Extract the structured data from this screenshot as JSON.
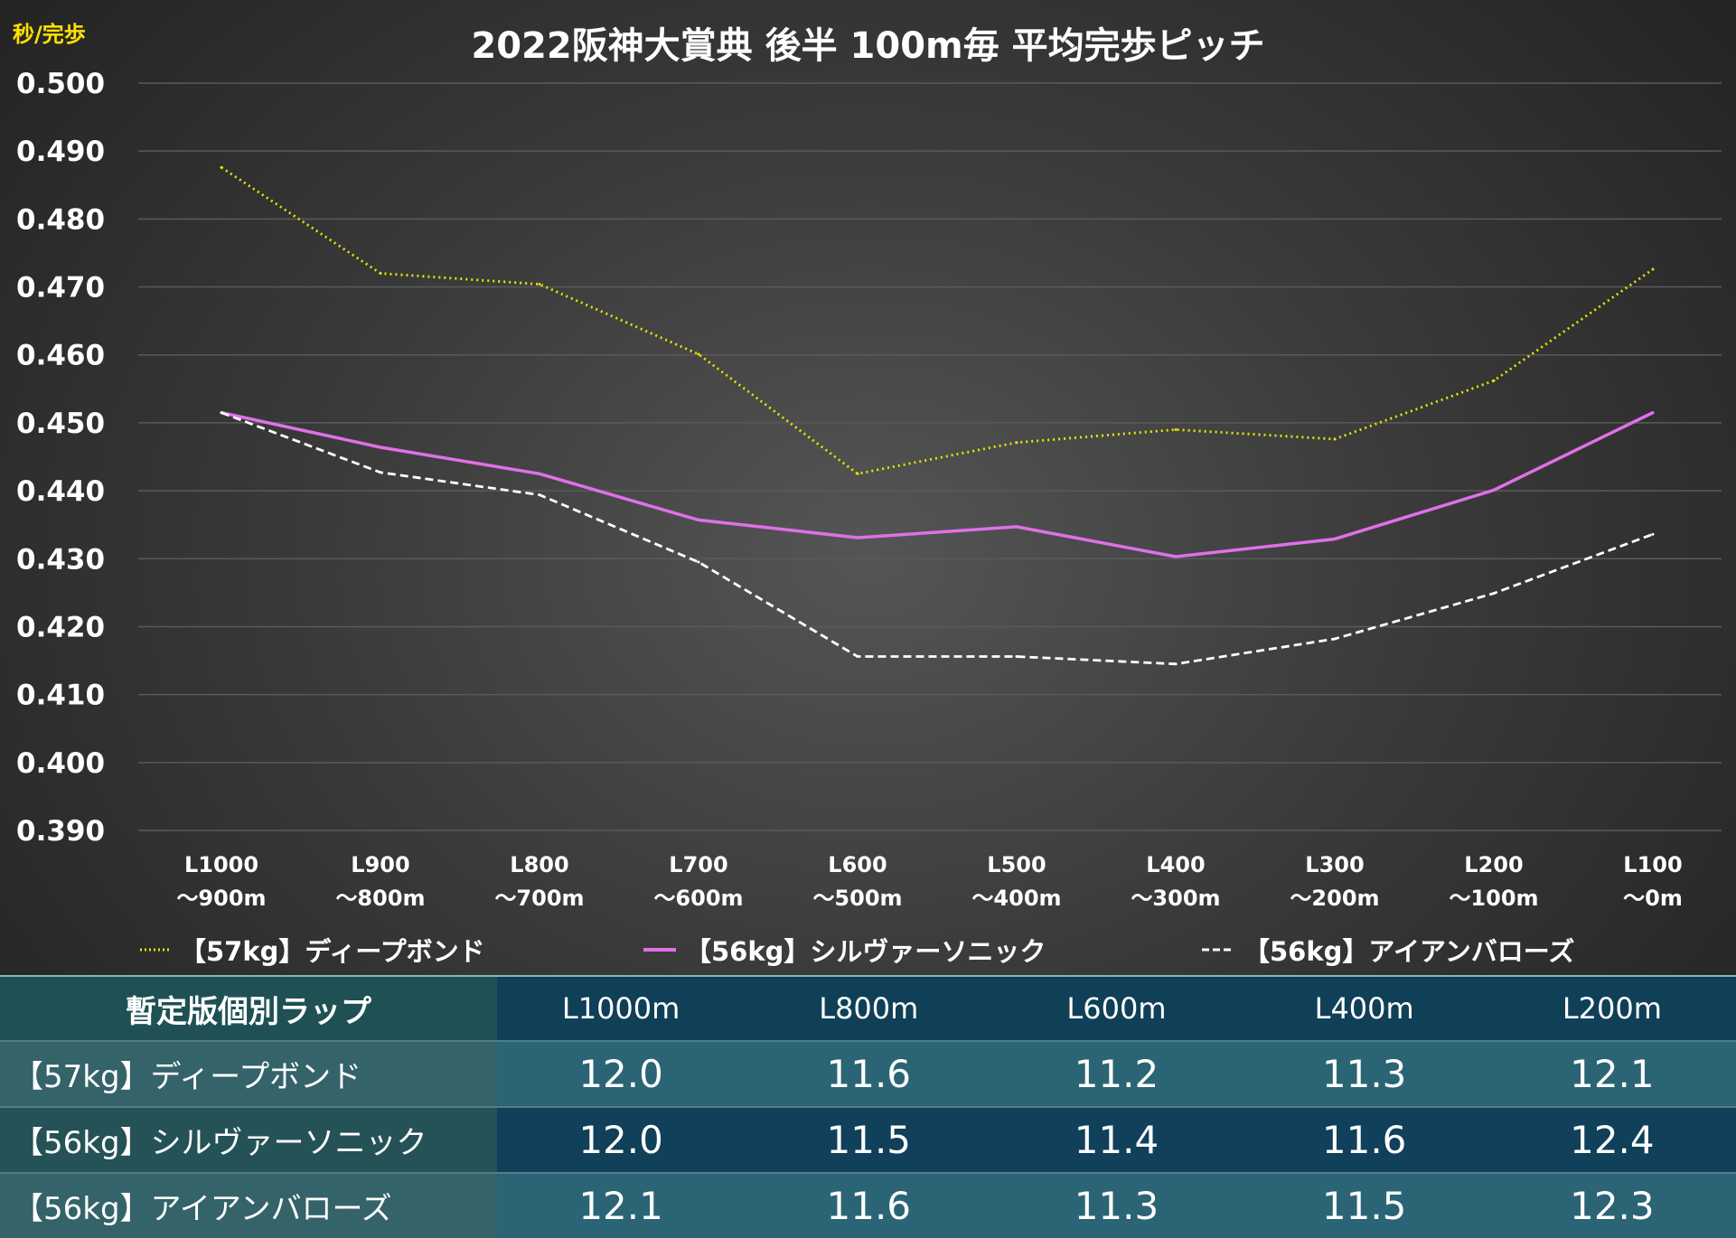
{
  "chart_data": {
    "type": "line",
    "title": "2022阪神大賞典 後半 100m毎 平均完歩ピッチ",
    "ylabel": "秒/完歩",
    "xlabel": "",
    "ylim": [
      0.39,
      0.5
    ],
    "yticks": [
      "0.500",
      "0.490",
      "0.480",
      "0.470",
      "0.460",
      "0.450",
      "0.440",
      "0.430",
      "0.420",
      "0.410",
      "0.400",
      "0.390"
    ],
    "grid": true,
    "legend_position": "bottom",
    "categories": [
      [
        "L1000",
        "〜900m"
      ],
      [
        "L900",
        "〜800m"
      ],
      [
        "L800",
        "〜700m"
      ],
      [
        "L700",
        "〜600m"
      ],
      [
        "L600",
        "〜500m"
      ],
      [
        "L500",
        "〜400m"
      ],
      [
        "L400",
        "〜300m"
      ],
      [
        "L300",
        "〜200m"
      ],
      [
        "L200",
        "〜100m"
      ],
      [
        "L100",
        "〜0m"
      ]
    ],
    "series": [
      {
        "name": "【57kg】ディープボンド",
        "color": "#e6e600",
        "style": "dotted",
        "values": [
          0.4876,
          0.472,
          0.4704,
          0.4601,
          0.4425,
          0.4471,
          0.449,
          0.4476,
          0.4562,
          0.4726
        ]
      },
      {
        "name": "【56kg】シルヴァーソニック",
        "color": "#e070e8",
        "style": "solid",
        "values": [
          0.4515,
          0.4464,
          0.4425,
          0.4357,
          0.4331,
          0.4347,
          0.4303,
          0.4329,
          0.4401,
          0.4515
        ]
      },
      {
        "name": "【56kg】アイアンバローズ",
        "color": "#ffffff",
        "style": "dashed",
        "values": [
          0.4515,
          0.4427,
          0.4394,
          0.4295,
          0.4156,
          0.4156,
          0.4145,
          0.4182,
          0.4249,
          0.4336
        ]
      }
    ]
  },
  "table": {
    "header": "暫定版個別ラップ",
    "columns": [
      "L1000m",
      "L800m",
      "L600m",
      "L400m",
      "L200m"
    ],
    "rows": [
      {
        "label": "【57kg】ディープボンド",
        "values": [
          "12.0",
          "11.6",
          "11.2",
          "11.3",
          "12.1"
        ]
      },
      {
        "label": "【56kg】シルヴァーソニック",
        "values": [
          "12.0",
          "11.5",
          "11.4",
          "11.6",
          "12.4"
        ]
      },
      {
        "label": "【56kg】アイアンバローズ",
        "values": [
          "12.1",
          "11.6",
          "11.3",
          "11.5",
          "12.3"
        ]
      }
    ]
  }
}
